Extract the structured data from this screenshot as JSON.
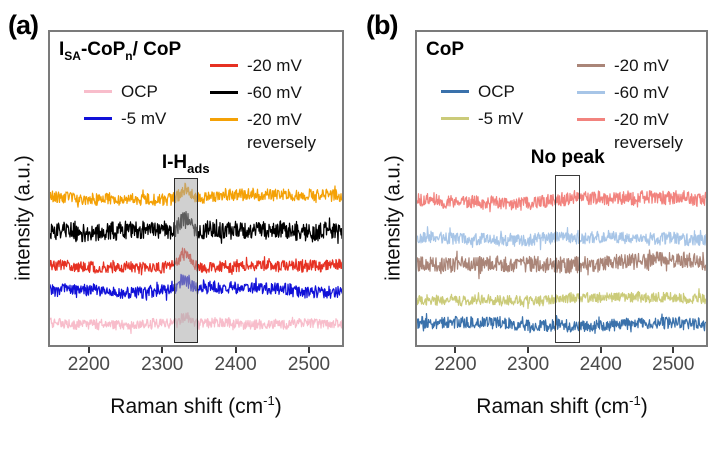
{
  "figure": {
    "background": "#ffffff"
  },
  "panels": [
    {
      "label": "(a)",
      "title_parts": {
        "p1": "I",
        "s1": "SA",
        "p2": "-CoP",
        "s2": "n",
        "p3": "/ CoP"
      },
      "legend": {
        "col1": [
          "OCP",
          "-5 mV"
        ],
        "col2": [
          "-20 mV",
          "-60 mV",
          "-20 mV"
        ],
        "col2_extra": "reversely"
      },
      "annotation_parts": {
        "base": "I-H",
        "sub": "ads"
      },
      "ylabel": "intensity (a.u.)",
      "xlabel_parts": {
        "base": "Raman shift (cm",
        "sup": "-1",
        "close": ")"
      },
      "xtick_labels": [
        "2200",
        "2300",
        "2400",
        "2500"
      ]
    },
    {
      "label": "(b)",
      "title_parts": {
        "p1": "CoP",
        "s1": "",
        "p2": "",
        "s2": "",
        "p3": ""
      },
      "legend": {
        "col1": [
          "OCP",
          "-5 mV"
        ],
        "col2": [
          "-20 mV",
          "-60 mV",
          "-20 mV"
        ],
        "col2_extra": "reversely"
      },
      "annotation_parts": {
        "base": "No peak",
        "sub": ""
      },
      "ylabel": "intensity (a.u.)",
      "xlabel_parts": {
        "base": "Raman shift (cm",
        "sup": "-1",
        "close": ")"
      },
      "xtick_labels": [
        "2200",
        "2300",
        "2400",
        "2500"
      ]
    }
  ],
  "chart_data": [
    {
      "type": "line",
      "panel": "a",
      "title": "I_SA-CoP_n/ CoP",
      "xlabel": "Raman shift (cm^-1)",
      "ylabel": "intensity (a.u.)",
      "xlim": [
        2147,
        2545
      ],
      "xticks": [
        2200,
        2300,
        2400,
        2500
      ],
      "grid": false,
      "legend_position": "top-inside",
      "highlight_region": {
        "x0": 2316,
        "x1": 2348,
        "label": "I-H_ads",
        "style": "filled-gray"
      },
      "series": [
        {
          "name": "OCP",
          "color": "#F8BDCB",
          "offset": 290,
          "amplitude": 5,
          "peak": {
            "center": 2331,
            "height": 7,
            "width": 7
          }
        },
        {
          "name": "-5 mV",
          "color": "#1111D8",
          "offset": 258,
          "amplitude": 6,
          "peak": {
            "center": 2331,
            "height": 11,
            "width": 7
          }
        },
        {
          "name": "-20 mV",
          "color": "#E63122",
          "offset": 233,
          "amplitude": 5.5,
          "peak": {
            "center": 2331,
            "height": 13,
            "width": 7
          }
        },
        {
          "name": "-60 mV",
          "color": "#000000",
          "offset": 198,
          "amplitude": 9,
          "peak": {
            "center": 2331,
            "height": 14,
            "width": 8
          }
        },
        {
          "name": "-20 mV reversely",
          "color": "#F4A106",
          "offset": 165,
          "amplitude": 6,
          "peak": {
            "center": 2331,
            "height": 10,
            "width": 7
          }
        }
      ]
    },
    {
      "type": "line",
      "panel": "b",
      "title": "CoP",
      "xlabel": "Raman shift (cm^-1)",
      "ylabel": "intensity (a.u.)",
      "xlim": [
        2147,
        2545
      ],
      "xticks": [
        2200,
        2300,
        2400,
        2500
      ],
      "grid": false,
      "legend_position": "top-inside",
      "highlight_region": {
        "x0": 2337,
        "x1": 2372,
        "label": "No peak",
        "style": "outline"
      },
      "series": [
        {
          "name": "OCP",
          "color": "#3A71AB",
          "offset": 291,
          "amplitude": 6,
          "peak": null
        },
        {
          "name": "-5 mV",
          "color": "#CBCB79",
          "offset": 268,
          "amplitude": 5,
          "peak": null
        },
        {
          "name": "-20 mV",
          "color": "#AA8578",
          "offset": 231,
          "amplitude": 8,
          "peak": null
        },
        {
          "name": "-60 mV",
          "color": "#A7C5E7",
          "offset": 206,
          "amplitude": 6,
          "peak": null
        },
        {
          "name": "-20 mV reversely",
          "color": "#F2837E",
          "offset": 168,
          "amplitude": 6.5,
          "peak": null
        }
      ]
    }
  ]
}
